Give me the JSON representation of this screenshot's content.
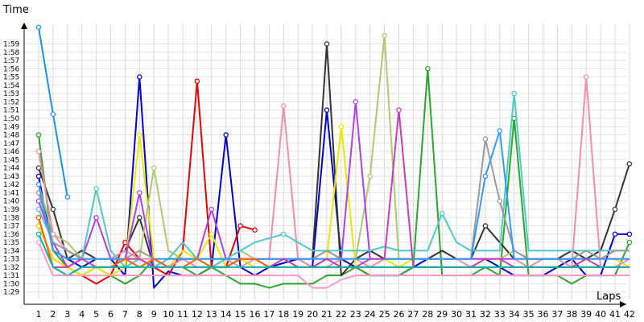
{
  "chart_data": {
    "type": "line",
    "xlabel": "Laps",
    "ylabel": "Time",
    "x": [
      1,
      2,
      3,
      4,
      5,
      6,
      7,
      8,
      9,
      10,
      11,
      12,
      13,
      14,
      15,
      16,
      17,
      18,
      19,
      20,
      21,
      22,
      23,
      24,
      25,
      26,
      27,
      28,
      29,
      30,
      31,
      32,
      33,
      34,
      35,
      36,
      37,
      38,
      39,
      40,
      41,
      42
    ],
    "x_tick_labels": [
      "1",
      "2",
      "3",
      "4",
      "5",
      "6",
      "7",
      "8",
      "9",
      "10",
      "11",
      "12",
      "13",
      "14",
      "15",
      "16",
      "17",
      "18",
      "19",
      "20",
      "21",
      "22",
      "23",
      "24",
      "25",
      "26",
      "27",
      "28",
      "29",
      "30",
      "31",
      "32",
      "33",
      "34",
      "35",
      "36",
      "37",
      "38",
      "39",
      "40",
      "41",
      "42"
    ],
    "ylim": [
      88,
      121
    ],
    "y_ticks": [
      89,
      90,
      91,
      92,
      93,
      94,
      95,
      96,
      97,
      98,
      99,
      100,
      101,
      102,
      103,
      104,
      105,
      106,
      107,
      108,
      109,
      110,
      111,
      112,
      113,
      114,
      115,
      116,
      117,
      118,
      119
    ],
    "y_tick_labels": [
      "1:29",
      "1:30",
      "1:31",
      "1:32",
      "1:33",
      "1:34",
      "1:35",
      "1:36",
      "1:37",
      "1:38",
      "1:39",
      "1:40",
      "1:41",
      "1:42",
      "1:43",
      "1:44",
      "1:45",
      "1:46",
      "1:47",
      "1:48",
      "1:49",
      "1:50",
      "1:51",
      "1:52",
      "1:53",
      "1:54",
      "1:55",
      "1:56",
      "1:57",
      "1:58",
      "1:59"
    ],
    "grid": "vertical-and-horizontal",
    "series": [
      {
        "color": "#1e90e6",
        "values": [
          121,
          110.5,
          100.5,
          null,
          null,
          null,
          null,
          null,
          null,
          null,
          null,
          null,
          null,
          null,
          null,
          null,
          null,
          null,
          null,
          null,
          null,
          null,
          null,
          null,
          null,
          null,
          null,
          null,
          null,
          null,
          null,
          null,
          null,
          null,
          null,
          null,
          null,
          null,
          null,
          null,
          null,
          null
        ]
      },
      {
        "color": "#0000cc",
        "values": [
          103,
          94,
          93,
          92,
          93,
          93,
          91,
          115,
          89.5,
          91.5,
          91,
          91,
          92,
          108,
          92,
          91,
          92,
          92.5,
          93,
          92,
          111,
          93,
          92,
          91,
          91,
          91,
          92,
          93,
          93,
          93,
          93,
          93,
          92,
          91,
          91,
          91,
          92,
          93,
          91,
          91,
          96,
          96
        ]
      },
      {
        "color": "#e60000",
        "values": [
          97,
          93,
          92,
          91,
          90,
          91,
          95,
          93,
          92,
          91,
          94,
          114.5,
          92,
          92,
          97,
          96.5,
          null,
          null,
          null,
          null,
          null,
          null,
          null,
          null,
          null,
          null,
          null,
          null,
          null,
          null,
          null,
          null,
          null,
          null,
          null,
          null,
          null,
          null,
          null,
          null,
          null,
          null
        ]
      },
      {
        "color": "#2aa52a",
        "values": [
          108,
          94,
          92,
          91,
          92,
          91,
          90,
          91,
          93,
          92,
          92,
          91,
          92,
          91,
          90,
          90,
          89.5,
          90,
          90,
          90,
          91,
          91,
          92,
          91,
          91,
          91,
          92,
          116,
          91,
          91,
          91,
          92,
          91,
          110,
          91,
          91,
          91,
          90,
          91,
          91,
          91,
          95
        ]
      },
      {
        "color": "#333333",
        "values": [
          104,
          99,
          93,
          94,
          93,
          93,
          94,
          98,
          92,
          92,
          93,
          93,
          93,
          93,
          93,
          93,
          93,
          93,
          93,
          93,
          119,
          91,
          93,
          94,
          93,
          93,
          93,
          93,
          94,
          93,
          93,
          97,
          95,
          93,
          93,
          93,
          93,
          94,
          93,
          94,
          99,
          104.5
        ]
      },
      {
        "color": "#e8e800",
        "values": [
          97,
          93,
          92,
          91,
          92,
          91,
          92,
          108,
          93,
          92,
          94,
          93,
          96,
          92,
          93,
          92,
          92,
          92,
          92,
          92,
          93,
          109,
          92,
          92,
          93,
          92,
          93,
          93,
          93,
          93,
          93,
          93,
          93,
          93,
          93,
          93,
          93,
          93,
          93,
          93,
          93,
          92
        ]
      },
      {
        "color": "#b0c870",
        "values": [
          102,
          96,
          95,
          93,
          93,
          93,
          93,
          93,
          104,
          94,
          93,
          93,
          93,
          93,
          94,
          93,
          93,
          93,
          93,
          93,
          94,
          93,
          93,
          103,
          120,
          93,
          93,
          93,
          93,
          93,
          93,
          93,
          93,
          94,
          93,
          93,
          93,
          93,
          93,
          93,
          93,
          93
        ]
      },
      {
        "color": "#f08cb0",
        "values": [
          106,
          96,
          94,
          93,
          93,
          93,
          94,
          93,
          93,
          92,
          93,
          92,
          92,
          93,
          92,
          93,
          93,
          111.5,
          93,
          92,
          92,
          93,
          93,
          92,
          93,
          93,
          93,
          93,
          93,
          93,
          92,
          93,
          93,
          93,
          92,
          93,
          93,
          92,
          115,
          92,
          92,
          93
        ]
      },
      {
        "color": "#b040e6",
        "values": [
          100,
          95,
          92,
          93,
          98,
          93,
          93,
          101,
          92,
          93,
          93,
          93,
          99,
          93,
          93,
          93,
          93,
          93,
          93,
          93,
          93,
          93,
          112,
          93,
          93,
          93,
          93,
          93,
          93,
          93,
          93,
          93,
          93,
          93,
          93,
          93,
          93,
          93,
          93,
          93,
          93,
          93
        ]
      },
      {
        "color": "#50c8c8",
        "values": [
          99,
          95,
          94,
          93,
          101.5,
          94,
          92,
          93,
          92,
          93,
          95,
          93,
          92,
          93,
          94,
          95,
          95.5,
          96,
          95,
          94,
          94,
          94,
          94,
          94,
          94.5,
          94,
          94,
          94,
          98.5,
          95,
          94,
          94,
          94,
          113,
          94,
          94,
          94,
          94,
          94,
          94,
          94,
          94
        ]
      },
      {
        "color": "#999999",
        "values": [
          101,
          95,
          94,
          93,
          93,
          93,
          93,
          94,
          93,
          93,
          93,
          93,
          93,
          93,
          93,
          93,
          93,
          93,
          93,
          93,
          94,
          93,
          93,
          93,
          93,
          93,
          93,
          93,
          93,
          93,
          93,
          107.5,
          100,
          94,
          93,
          93,
          93,
          93,
          94,
          93,
          94,
          94
        ]
      },
      {
        "color": "#3399ff",
        "values": [
          102,
          94,
          93,
          93,
          93,
          93,
          93,
          92,
          93,
          93,
          93,
          93,
          93,
          93,
          93,
          93,
          93,
          93,
          93,
          93,
          93,
          93,
          93,
          93,
          93,
          93,
          93,
          93,
          93,
          93,
          93,
          103,
          108.5,
          93,
          93,
          93,
          93,
          93,
          93,
          93,
          93,
          93
        ]
      },
      {
        "color": "#c83cb4",
        "values": [
          98,
          92,
          92,
          93,
          92,
          92,
          93,
          93,
          92,
          92,
          92,
          92,
          92,
          92,
          93,
          93,
          92,
          93,
          92,
          92,
          93,
          92,
          92,
          93,
          93,
          111,
          92,
          92,
          92,
          92,
          92,
          93,
          93,
          92,
          92,
          92,
          92,
          92,
          93,
          92,
          92,
          92
        ]
      },
      {
        "color": "#ff6600",
        "values": [
          98,
          92,
          91,
          92,
          92,
          92,
          93,
          92,
          93,
          92,
          92,
          93,
          92,
          92,
          93,
          93,
          92,
          92,
          92,
          92,
          92,
          92,
          92,
          92,
          92,
          92,
          92,
          92,
          92,
          92,
          92,
          92,
          92,
          92,
          92,
          92,
          92,
          92,
          92,
          92,
          92,
          92
        ]
      },
      {
        "color": "#00b4b4",
        "values": [
          96,
          92,
          91,
          92,
          92,
          92,
          92,
          92,
          92,
          92,
          92,
          92,
          92,
          92,
          92,
          92,
          92,
          92,
          92,
          92,
          92,
          92,
          92,
          92,
          92,
          92,
          92,
          92,
          92,
          92,
          92,
          92,
          92,
          92,
          92,
          92,
          92,
          92,
          92,
          92,
          92,
          92
        ]
      },
      {
        "color": "#ff99cc",
        "values": [
          95,
          91,
          91,
          91,
          91,
          91,
          91,
          91,
          91,
          91,
          91,
          91,
          91,
          91,
          91,
          91,
          91,
          91,
          91,
          89.5,
          89.5,
          90.5,
          91,
          91,
          91,
          91,
          91,
          91,
          91,
          91,
          91,
          91,
          91,
          91,
          91,
          91,
          91,
          91,
          91,
          91,
          91,
          91
        ]
      }
    ]
  }
}
